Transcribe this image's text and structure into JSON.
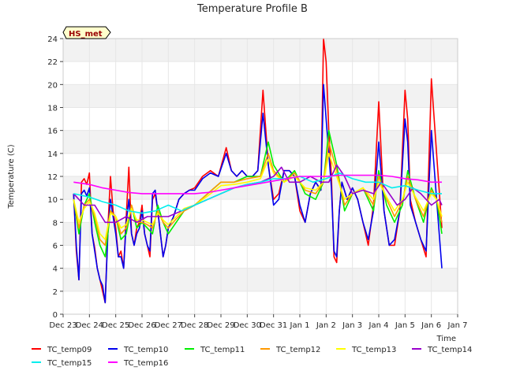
{
  "chart_data": {
    "type": "line",
    "title": "Temperature Profile B",
    "xlabel": "Time",
    "ylabel": "Temperature (C)",
    "annotation": "HS_met",
    "ylim": [
      0,
      24
    ],
    "xlim": [
      0,
      15
    ],
    "y_ticks": [
      0,
      2,
      4,
      6,
      8,
      10,
      12,
      14,
      16,
      18,
      20,
      22,
      24
    ],
    "x_ticks": [
      {
        "x": 0,
        "label": "Dec 23"
      },
      {
        "x": 1,
        "label": "Dec 24"
      },
      {
        "x": 2,
        "label": "Dec 25"
      },
      {
        "x": 3,
        "label": "Dec 26"
      },
      {
        "x": 4,
        "label": "Dec 27"
      },
      {
        "x": 5,
        "label": "Dec 28"
      },
      {
        "x": 6,
        "label": "Dec 29"
      },
      {
        "x": 7,
        "label": "Dec 30"
      },
      {
        "x": 8,
        "label": "Dec 31"
      },
      {
        "x": 9,
        "label": "Jan 1"
      },
      {
        "x": 10,
        "label": "Jan 2"
      },
      {
        "x": 11,
        "label": "Jan 3"
      },
      {
        "x": 12,
        "label": "Jan 4"
      },
      {
        "x": 13,
        "label": "Jan 5"
      },
      {
        "x": 14,
        "label": "Jan 6"
      },
      {
        "x": 15,
        "label": "Jan 7"
      }
    ],
    "grid": true,
    "legend_position": "bottom",
    "series": [
      {
        "name": "TC_temp09",
        "color": "#ff0000",
        "x": [
          0.4,
          0.5,
          0.6,
          0.7,
          0.8,
          0.9,
          1.0,
          1.1,
          1.2,
          1.3,
          1.4,
          1.5,
          1.6,
          1.7,
          1.8,
          1.9,
          2.0,
          2.1,
          2.2,
          2.3,
          2.4,
          2.5,
          2.6,
          2.7,
          2.8,
          2.9,
          3.0,
          3.1,
          3.2,
          3.3,
          3.4,
          3.5,
          3.6,
          3.7,
          3.8,
          3.9,
          4.0,
          4.2,
          4.4,
          4.6,
          4.8,
          5.0,
          5.3,
          5.6,
          5.9,
          6.2,
          6.4,
          6.6,
          6.8,
          7.0,
          7.2,
          7.4,
          7.6,
          7.8,
          8.0,
          8.2,
          8.4,
          8.6,
          8.8,
          9.0,
          9.2,
          9.4,
          9.6,
          9.8,
          9.9,
          10.0,
          10.1,
          10.2,
          10.3,
          10.4,
          10.5,
          10.6,
          10.8,
          11.0,
          11.2,
          11.4,
          11.6,
          11.8,
          12.0,
          12.2,
          12.4,
          12.6,
          12.8,
          13.0,
          13.1,
          13.2,
          13.4,
          13.6,
          13.8,
          14.0,
          14.2,
          14.4
        ],
        "y": [
          10.5,
          5.5,
          3.0,
          11.5,
          11.8,
          11.3,
          12.3,
          7.0,
          5.8,
          4.0,
          3.0,
          2.0,
          1.0,
          7.5,
          12.0,
          9.0,
          7.5,
          5.0,
          5.5,
          4.0,
          8.5,
          12.8,
          7.0,
          6.0,
          7.5,
          8.0,
          9.5,
          7.0,
          6.0,
          5.0,
          10.0,
          10.5,
          9.0,
          7.0,
          5.0,
          6.0,
          7.5,
          8.5,
          10.0,
          10.5,
          10.8,
          11.0,
          12.0,
          12.5,
          12.0,
          14.5,
          12.5,
          12.0,
          12.5,
          12.0,
          12.0,
          12.5,
          19.5,
          13.0,
          10.0,
          10.5,
          12.5,
          12.5,
          12.0,
          9.0,
          8.0,
          10.5,
          11.5,
          10.8,
          24.0,
          22.0,
          16.0,
          12.0,
          5.0,
          4.5,
          9.0,
          11.5,
          10.0,
          11.0,
          10.0,
          8.0,
          6.0,
          9.5,
          18.5,
          9.0,
          6.0,
          6.0,
          9.0,
          19.5,
          17.0,
          10.0,
          8.0,
          6.5,
          5.0,
          20.5,
          14.0,
          7.5
        ]
      },
      {
        "name": "TC_temp10",
        "color": "#0000ee",
        "x": [
          0.4,
          0.5,
          0.6,
          0.7,
          0.8,
          0.9,
          1.0,
          1.1,
          1.2,
          1.3,
          1.4,
          1.5,
          1.6,
          1.7,
          1.8,
          1.9,
          2.0,
          2.1,
          2.2,
          2.3,
          2.4,
          2.5,
          2.6,
          2.7,
          2.8,
          2.9,
          3.0,
          3.1,
          3.2,
          3.3,
          3.4,
          3.5,
          3.6,
          3.7,
          3.8,
          3.9,
          4.0,
          4.2,
          4.4,
          4.6,
          4.8,
          5.0,
          5.3,
          5.6,
          5.9,
          6.2,
          6.4,
          6.6,
          6.8,
          7.0,
          7.2,
          7.4,
          7.6,
          7.8,
          8.0,
          8.2,
          8.4,
          8.6,
          8.8,
          9.0,
          9.2,
          9.4,
          9.6,
          9.8,
          9.9,
          10.0,
          10.1,
          10.2,
          10.3,
          10.4,
          10.5,
          10.6,
          10.8,
          11.0,
          11.2,
          11.4,
          11.6,
          11.8,
          12.0,
          12.2,
          12.4,
          12.6,
          12.8,
          13.0,
          13.1,
          13.2,
          13.4,
          13.6,
          13.8,
          14.0,
          14.2,
          14.4
        ],
        "y": [
          10.5,
          6.0,
          3.0,
          10.5,
          10.8,
          10.3,
          11.0,
          7.0,
          5.5,
          4.0,
          3.0,
          2.5,
          1.0,
          7.0,
          10.0,
          8.5,
          7.0,
          5.0,
          5.0,
          4.0,
          8.0,
          10.0,
          7.0,
          6.0,
          7.0,
          7.5,
          9.0,
          7.0,
          6.0,
          5.5,
          10.5,
          10.8,
          9.0,
          7.0,
          5.0,
          6.0,
          7.5,
          8.5,
          10.0,
          10.5,
          10.8,
          10.8,
          11.8,
          12.3,
          12.0,
          14.0,
          12.5,
          12.0,
          12.5,
          12.0,
          12.0,
          12.5,
          17.5,
          13.0,
          9.5,
          10.0,
          12.5,
          12.5,
          12.0,
          9.5,
          8.0,
          10.5,
          11.5,
          10.8,
          20.0,
          17.0,
          14.0,
          11.0,
          5.5,
          5.0,
          9.0,
          11.5,
          10.0,
          11.0,
          10.0,
          8.0,
          6.5,
          9.0,
          15.0,
          9.0,
          6.0,
          6.5,
          9.0,
          17.0,
          15.0,
          9.5,
          8.0,
          6.5,
          5.5,
          16.0,
          10.0,
          4.0
        ]
      },
      {
        "name": "TC_temp11",
        "color": "#00ee00",
        "x": [
          0.4,
          0.6,
          0.8,
          1.0,
          1.2,
          1.4,
          1.6,
          1.8,
          2.0,
          2.2,
          2.4,
          2.6,
          2.8,
          3.0,
          3.2,
          3.4,
          3.6,
          3.8,
          4.0,
          4.3,
          4.6,
          5.0,
          5.5,
          6.0,
          6.5,
          7.0,
          7.5,
          7.8,
          8.0,
          8.4,
          8.8,
          9.2,
          9.6,
          9.9,
          10.1,
          10.4,
          10.7,
          11.0,
          11.4,
          11.8,
          12.0,
          12.3,
          12.6,
          12.9,
          13.1,
          13.4,
          13.7,
          14.0,
          14.2,
          14.4
        ],
        "y": [
          10.0,
          7.0,
          9.5,
          10.5,
          8.0,
          6.0,
          5.0,
          9.0,
          8.5,
          6.5,
          7.0,
          9.5,
          7.5,
          8.0,
          7.5,
          7.0,
          9.5,
          8.0,
          7.0,
          8.0,
          9.0,
          9.5,
          10.5,
          11.5,
          11.5,
          12.0,
          12.0,
          15.0,
          13.0,
          11.5,
          12.5,
          10.5,
          10.0,
          11.5,
          16.0,
          13.0,
          9.0,
          10.5,
          11.0,
          9.0,
          12.5,
          9.5,
          8.0,
          9.5,
          12.5,
          10.0,
          8.0,
          11.0,
          10.0,
          7.0
        ]
      },
      {
        "name": "TC_temp12",
        "color": "#ff9900",
        "x": [
          0.4,
          0.6,
          0.8,
          1.0,
          1.2,
          1.4,
          1.6,
          1.8,
          2.0,
          2.2,
          2.4,
          2.6,
          2.8,
          3.0,
          3.2,
          3.4,
          3.6,
          3.8,
          4.0,
          4.3,
          4.6,
          5.0,
          5.5,
          6.0,
          6.5,
          7.0,
          7.5,
          7.8,
          8.0,
          8.4,
          8.8,
          9.2,
          9.6,
          9.9,
          10.1,
          10.4,
          10.7,
          11.0,
          11.4,
          11.8,
          12.0,
          12.3,
          12.6,
          12.9,
          13.1,
          13.4,
          13.7,
          14.0,
          14.2,
          14.4
        ],
        "y": [
          10.0,
          7.5,
          9.5,
          10.0,
          8.5,
          6.5,
          6.0,
          9.0,
          8.5,
          7.0,
          7.5,
          9.5,
          8.0,
          8.0,
          7.8,
          7.5,
          9.0,
          8.0,
          7.5,
          8.3,
          9.0,
          9.5,
          10.5,
          11.5,
          11.5,
          11.8,
          12.0,
          14.0,
          12.5,
          11.5,
          12.3,
          10.8,
          10.5,
          11.5,
          15.0,
          12.5,
          9.5,
          10.5,
          11.0,
          9.5,
          12.0,
          10.0,
          8.5,
          9.8,
          12.0,
          10.0,
          8.5,
          10.8,
          10.0,
          8.0
        ]
      },
      {
        "name": "TC_temp13",
        "color": "#ffff00",
        "x": [
          0.4,
          0.6,
          0.8,
          1.0,
          1.2,
          1.4,
          1.6,
          1.8,
          2.0,
          2.2,
          2.4,
          2.6,
          2.8,
          3.0,
          3.2,
          3.4,
          3.6,
          3.8,
          4.0,
          4.3,
          4.6,
          5.0,
          5.5,
          6.0,
          6.5,
          7.0,
          7.5,
          7.8,
          8.0,
          8.4,
          8.8,
          9.2,
          9.6,
          9.9,
          10.1,
          10.4,
          10.7,
          11.0,
          11.4,
          11.8,
          12.0,
          12.3,
          12.6,
          12.9,
          13.1,
          13.4,
          13.7,
          14.0,
          14.2,
          14.4
        ],
        "y": [
          10.0,
          8.0,
          9.2,
          9.8,
          8.8,
          7.0,
          6.5,
          8.8,
          8.5,
          7.5,
          7.8,
          9.2,
          8.2,
          8.2,
          8.0,
          7.8,
          8.8,
          8.2,
          7.8,
          8.5,
          9.2,
          9.5,
          10.3,
          11.2,
          11.3,
          11.5,
          11.8,
          13.5,
          12.3,
          11.5,
          12.0,
          11.0,
          10.8,
          11.5,
          14.0,
          12.0,
          10.0,
          10.5,
          11.0,
          10.0,
          11.5,
          10.2,
          9.0,
          10.0,
          11.5,
          10.2,
          9.0,
          10.5,
          10.0,
          8.5
        ]
      },
      {
        "name": "TC_temp14",
        "color": "#9900cc",
        "x": [
          0.4,
          0.8,
          1.2,
          1.6,
          2.0,
          2.4,
          2.8,
          3.2,
          3.6,
          4.0,
          4.5,
          5.0,
          5.5,
          6.0,
          6.5,
          7.0,
          7.5,
          8.0,
          8.3,
          8.6,
          9.0,
          9.4,
          9.8,
          10.1,
          10.4,
          10.7,
          11.0,
          11.4,
          11.8,
          12.1,
          12.4,
          12.7,
          13.0,
          13.3,
          13.6,
          14.0,
          14.3,
          14.4
        ],
        "y": [
          10.5,
          9.5,
          9.5,
          8.0,
          8.0,
          8.5,
          8.0,
          8.5,
          8.5,
          8.5,
          9.0,
          9.5,
          10.0,
          10.5,
          11.0,
          11.3,
          11.5,
          12.0,
          12.8,
          11.5,
          11.5,
          12.0,
          11.5,
          11.5,
          13.0,
          12.0,
          10.5,
          10.8,
          10.5,
          11.5,
          10.5,
          9.5,
          10.0,
          11.0,
          10.5,
          9.5,
          10.0,
          9.5
        ]
      },
      {
        "name": "TC_temp15",
        "color": "#00eeee",
        "x": [
          0.4,
          1.0,
          1.5,
          2.0,
          2.5,
          3.0,
          3.5,
          4.0,
          4.5,
          5.0,
          5.5,
          6.0,
          6.5,
          7.0,
          7.5,
          8.0,
          8.5,
          9.0,
          9.5,
          10.0,
          10.5,
          11.0,
          11.5,
          12.0,
          12.5,
          13.0,
          13.5,
          14.0,
          14.4
        ],
        "y": [
          10.5,
          10.2,
          9.8,
          9.5,
          9.0,
          8.8,
          9.0,
          9.5,
          9.0,
          9.5,
          10.0,
          10.5,
          11.0,
          11.3,
          11.5,
          11.8,
          11.8,
          12.0,
          11.5,
          11.8,
          12.3,
          11.8,
          11.5,
          11.5,
          11.0,
          11.2,
          10.8,
          10.5,
          10.5
        ]
      },
      {
        "name": "TC_temp16",
        "color": "#ff00ff",
        "x": [
          0.4,
          1.0,
          1.5,
          2.0,
          2.5,
          3.0,
          3.5,
          4.0,
          4.5,
          5.0,
          5.5,
          6.0,
          6.5,
          7.0,
          7.5,
          8.0,
          8.5,
          9.0,
          9.5,
          10.0,
          10.5,
          11.0,
          11.5,
          12.0,
          12.5,
          13.0,
          13.5,
          14.0,
          14.4
        ],
        "y": [
          11.5,
          11.3,
          11.0,
          10.8,
          10.6,
          10.5,
          10.5,
          10.5,
          10.5,
          10.5,
          10.6,
          10.8,
          11.0,
          11.2,
          11.4,
          11.6,
          11.8,
          12.0,
          12.0,
          12.0,
          12.1,
          12.1,
          12.1,
          12.1,
          12.0,
          11.8,
          11.7,
          11.5,
          11.5
        ]
      }
    ]
  }
}
